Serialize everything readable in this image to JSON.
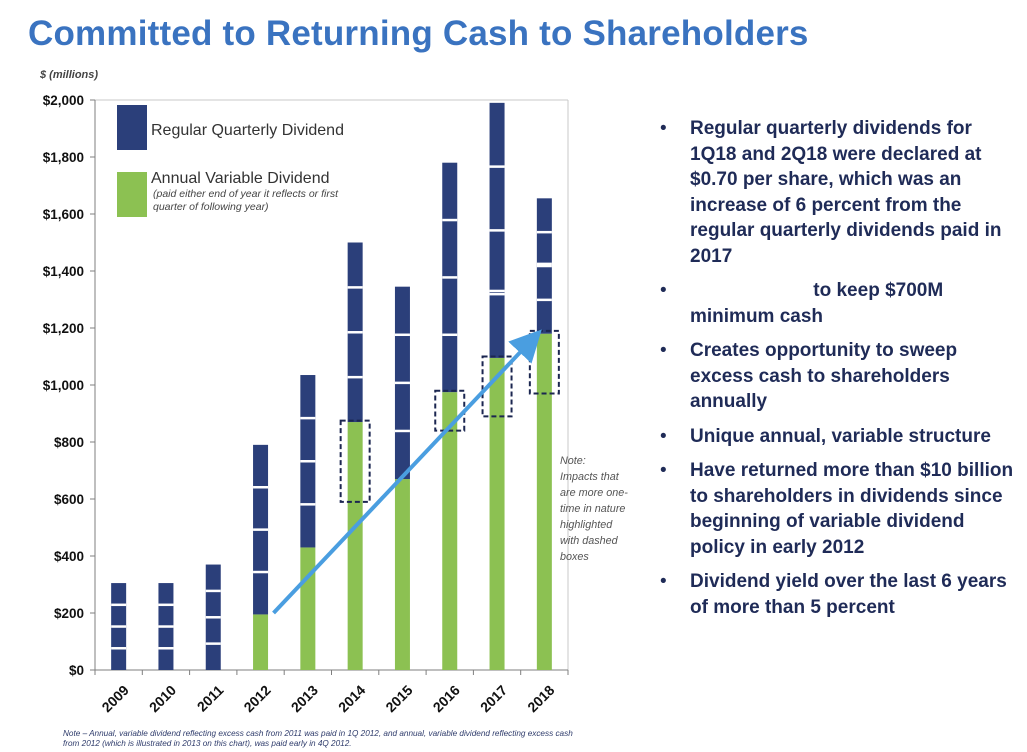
{
  "title": "Committed to Returning Cash to Shareholders",
  "colors": {
    "title": "#3a73c0",
    "regular": "#2b3f7a",
    "variable": "#8cc152",
    "arrow": "#4a9ee0",
    "text": "#1f2b57"
  },
  "chart_data": {
    "type": "bar",
    "stacked": true,
    "unit_label": "$ (millions)",
    "categories": [
      "2009",
      "2010",
      "2011",
      "2012",
      "2013",
      "2014",
      "2015",
      "2016",
      "2017",
      "2018"
    ],
    "series": [
      {
        "name": "Annual Variable Dividend",
        "values": [
          0,
          0,
          0,
          195,
          430,
          870,
          670,
          975,
          1095,
          1180
        ]
      },
      {
        "name": "Regular Quarterly Dividend",
        "values": [
          305,
          305,
          370,
          595,
          605,
          630,
          675,
          805,
          895,
          475
        ]
      }
    ],
    "quarter_dividers": [
      [],
      [],
      [],
      [],
      [],
      [],
      [],
      [],
      [
        1330
      ],
      [
        1425
      ]
    ],
    "ylim": [
      0,
      2000
    ],
    "ytick_values": [
      0,
      200,
      400,
      600,
      800,
      1000,
      1200,
      1400,
      1600,
      1800,
      2000
    ],
    "ytick_labels": [
      "$0",
      "$200",
      "$400",
      "$600",
      "$800",
      "$1,000",
      "$1,200",
      "$1,400",
      "$1,600",
      "$1,800",
      "$2,000"
    ],
    "grid": false,
    "legend": [
      {
        "name": "Regular Quarterly Dividend",
        "sub": ""
      },
      {
        "name": "Annual Variable Dividend",
        "sub": "(paid either end of year it reflects or first quarter of following year)"
      }
    ],
    "highlight_boxes": [
      {
        "category": "2014",
        "y0": 590,
        "y1": 875
      },
      {
        "category": "2016",
        "y0": 840,
        "y1": 980
      },
      {
        "category": "2017",
        "y0": 890,
        "y1": 1100
      },
      {
        "category": "2018",
        "y0": 970,
        "y1": 1190
      }
    ],
    "trend_arrow": {
      "from_category": "2012",
      "from_value": 200,
      "to_category": "2018",
      "to_value": 1175
    },
    "note": "Note: Impacts that are more one-time in nature highlighted with dashed boxes"
  },
  "bullets": [
    {
      "pre": "",
      "redacted": false,
      "text": "Regular quarterly dividends for 1Q18 and 2Q18 were declared at $0.70 per share, which was an increase of 6 percent from the regular quarterly dividends paid in 2017"
    },
    {
      "pre": "",
      "redacted": true,
      "text": "to keep $700M minimum cash"
    },
    {
      "pre": "",
      "redacted": false,
      "text": "Creates opportunity to sweep excess cash to shareholders annually"
    },
    {
      "pre": "",
      "redacted": false,
      "text": "Unique annual, variable structure"
    },
    {
      "pre": "",
      "redacted": false,
      "text": "Have returned more than $10 billion to shareholders in dividends since beginning of variable dividend policy in early 2012"
    },
    {
      "pre": "",
      "redacted": false,
      "text": "Dividend yield over the last 6 years of more than 5 percent"
    }
  ],
  "bullet_char": "•",
  "footnote": "Note – Annual, variable dividend reflecting excess cash from 2011 was paid in 1Q 2012, and annual, variable dividend reflecting excess cash from 2012 (which is illustrated in 2013 on this chart), was paid early in 4Q 2012."
}
